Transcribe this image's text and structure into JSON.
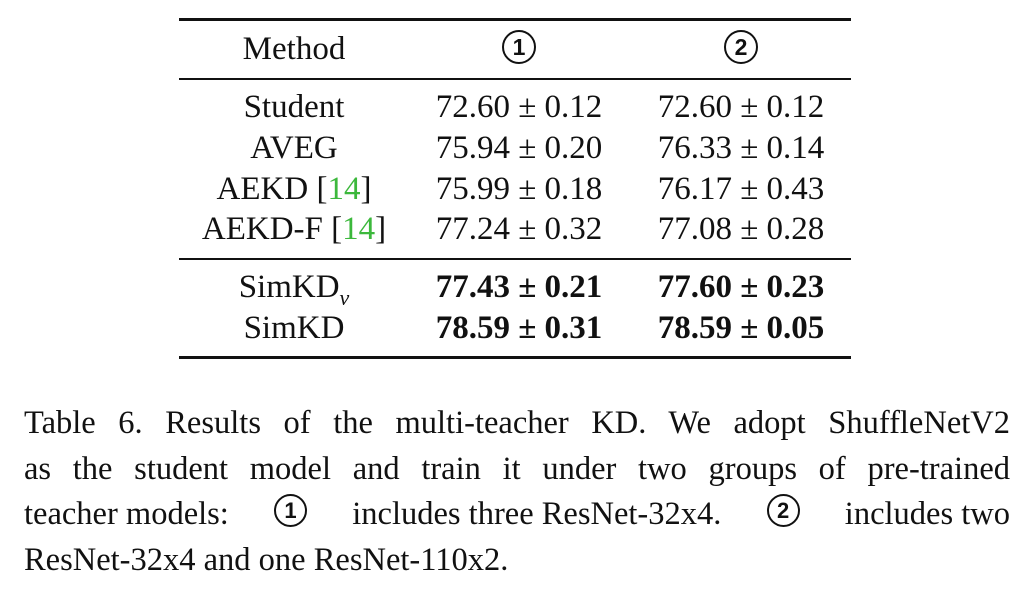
{
  "table": {
    "header": {
      "method": "Method",
      "group1": "1",
      "group2": "2"
    },
    "rows": [
      {
        "method": "Student",
        "citation": "",
        "one": "72.60 ± 0.12",
        "two": "72.60 ± 0.12"
      },
      {
        "method": "AVEG",
        "citation": "",
        "one": "75.94 ± 0.20",
        "two": "76.33 ± 0.14"
      },
      {
        "method": "AEKD [",
        "citation": "14",
        "close": "]",
        "one": "75.99 ± 0.18",
        "two": "76.17 ± 0.43"
      },
      {
        "method": "AEKD-F [",
        "citation": "14",
        "close": "]",
        "one": "77.24 ± 0.32",
        "two": "77.08 ± 0.28"
      }
    ],
    "ours": [
      {
        "method": "SimKD",
        "subscript": "v",
        "one": "77.43 ± 0.21",
        "two": "77.60 ± 0.23"
      },
      {
        "method": "SimKD",
        "subscript": "",
        "one": "78.59 ± 0.31",
        "two": "78.59 ± 0.05"
      }
    ]
  },
  "caption": {
    "line1": "Table 6. Results of the multi-teacher KD. We adopt ShuffleNetV2",
    "line2": "as the student model and train it under two groups of pre-trained",
    "line3a": "teacher models:",
    "line3b": "includes three ResNet-32x4.",
    "line3c": "includes two",
    "line4": "ResNet-32x4 and one ResNet-110x2.",
    "marker1": "1",
    "marker2": "2"
  },
  "colors": {
    "text": "#111111",
    "citation": "#3cb83c"
  }
}
